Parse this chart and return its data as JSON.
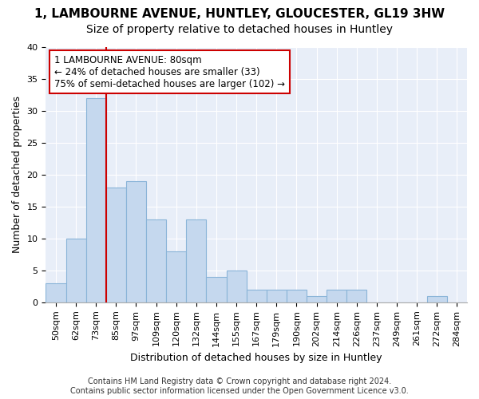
{
  "title": "1, LAMBOURNE AVENUE, HUNTLEY, GLOUCESTER, GL19 3HW",
  "subtitle": "Size of property relative to detached houses in Huntley",
  "xlabel": "Distribution of detached houses by size in Huntley",
  "ylabel": "Number of detached properties",
  "categories": [
    "50sqm",
    "62sqm",
    "73sqm",
    "85sqm",
    "97sqm",
    "109sqm",
    "120sqm",
    "132sqm",
    "144sqm",
    "155sqm",
    "167sqm",
    "179sqm",
    "190sqm",
    "202sqm",
    "214sqm",
    "226sqm",
    "237sqm",
    "249sqm",
    "261sqm",
    "272sqm",
    "284sqm"
  ],
  "values": [
    3,
    10,
    32,
    18,
    19,
    13,
    8,
    13,
    4,
    5,
    2,
    2,
    2,
    1,
    2,
    2,
    0,
    0,
    0,
    1,
    0
  ],
  "bar_color": "#c5d8ee",
  "bar_edge_color": "#8ab4d8",
  "property_line_color": "#cc0000",
  "annotation_text": "1 LAMBOURNE AVENUE: 80sqm\n← 24% of detached houses are smaller (33)\n75% of semi-detached houses are larger (102) →",
  "annotation_box_color": "white",
  "annotation_box_edge": "#cc0000",
  "ylim": [
    0,
    40
  ],
  "yticks": [
    0,
    5,
    10,
    15,
    20,
    25,
    30,
    35,
    40
  ],
  "fig_background": "#ffffff",
  "plot_background": "#e8eef8",
  "grid_color": "#ffffff",
  "footer_line1": "Contains HM Land Registry data © Crown copyright and database right 2024.",
  "footer_line2": "Contains public sector information licensed under the Open Government Licence v3.0.",
  "title_fontsize": 11,
  "subtitle_fontsize": 10,
  "axis_label_fontsize": 9,
  "tick_fontsize": 8,
  "footer_fontsize": 7
}
